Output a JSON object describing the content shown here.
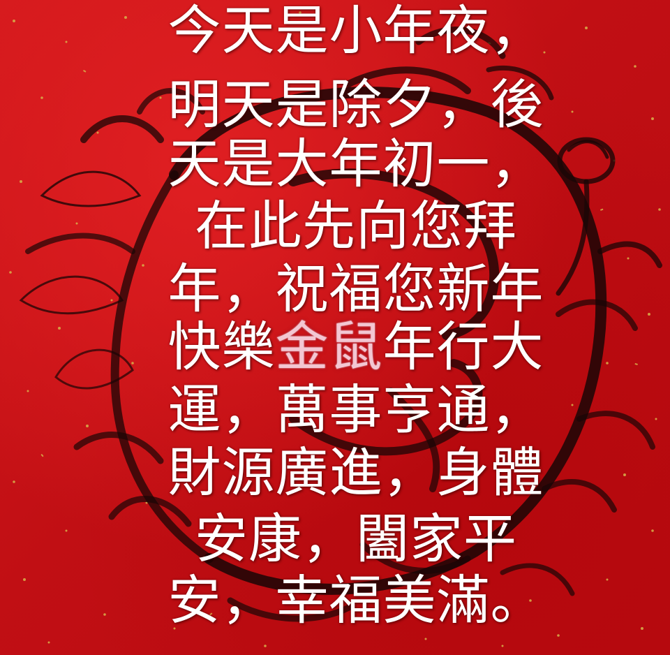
{
  "greeting": {
    "lines": [
      "今天是小年夜，",
      "明天是除夕，後",
      "天是大年初一，",
      "在此先向您拜",
      "年，祝福您新年",
      "快樂",
      "年行大",
      "運，萬事亨通，",
      "財源廣進，身體",
      "安康，闔家平",
      "安，幸福美滿。"
    ],
    "highlight": "金鼠"
  },
  "background": {
    "color": "#c8161a",
    "fleck_color": "#d8b24a",
    "ink_color": "#1a0606",
    "motif": "rat-and-flower-wreath-ink-painting"
  }
}
